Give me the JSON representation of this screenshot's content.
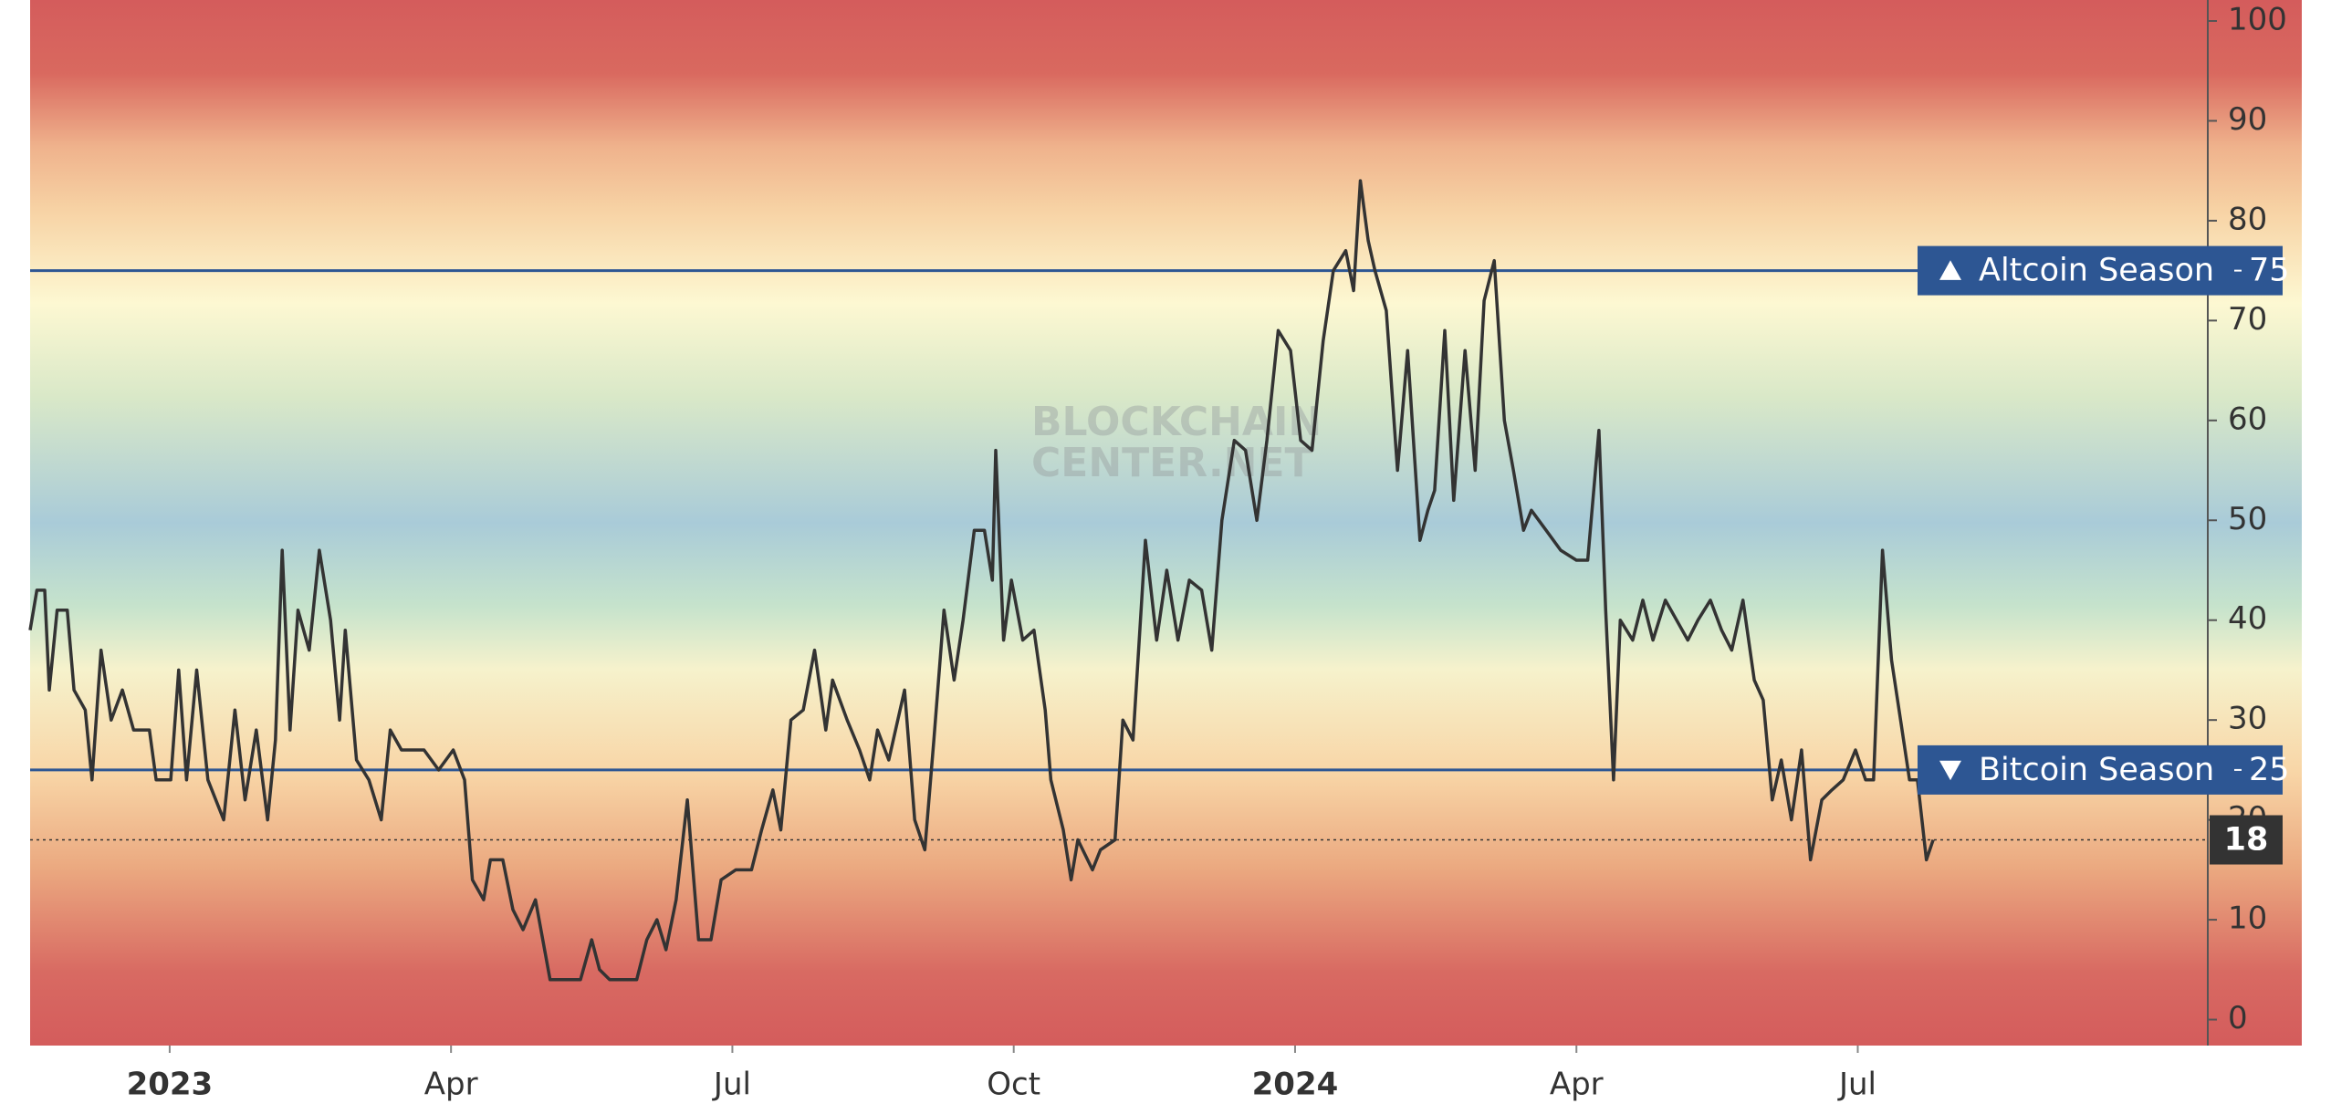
{
  "chart_data": {
    "type": "line",
    "color": "#333333",
    "xlim": [
      2022.876,
      2024.811
    ],
    "xticks": [
      {
        "value": 2023,
        "label": "2023"
      },
      {
        "value": 2023.25,
        "label": "Apr"
      },
      {
        "value": 2023.5,
        "label": "Jul"
      },
      {
        "value": 2023.75,
        "label": "Oct"
      },
      {
        "value": 2024,
        "label": "2024"
      },
      {
        "value": 2024.25,
        "label": "Apr"
      },
      {
        "value": 2024.5,
        "label": "Jul"
      }
    ],
    "ylim": [
      -2.6,
      102.1
    ],
    "yticks": [
      0,
      10,
      20,
      30,
      40,
      50,
      60,
      70,
      80,
      90,
      100
    ],
    "watermark": [
      "BLOCKCHAIN",
      "CENTER.NET"
    ],
    "reference_lines": [
      {
        "label": "Altcoin Season",
        "value": 75,
        "marker": "up",
        "color": "#2d5693"
      },
      {
        "label": "Bitcoin Season",
        "value": 25,
        "marker": "down",
        "color": "#2d5693"
      }
    ],
    "x": [
      2022.876,
      2022.882,
      2022.889,
      2022.893,
      2022.9,
      2022.909,
      2022.915,
      2022.925,
      2022.931,
      2022.939,
      2022.948,
      2022.958,
      2022.968,
      2022.982,
      2022.988,
      2023.001,
      2023.008,
      2023.015,
      2023.024,
      2023.034,
      2023.048,
      2023.058,
      2023.067,
      2023.077,
      2023.087,
      2023.094,
      2023.1,
      2023.107,
      2023.114,
      2023.124,
      2023.133,
      2023.143,
      2023.151,
      2023.156,
      2023.166,
      2023.177,
      2023.188,
      2023.196,
      2023.206,
      2023.226,
      2023.239,
      2023.252,
      2023.262,
      2023.269,
      2023.279,
      2023.285,
      2023.296,
      2023.305,
      2023.314,
      2023.325,
      2023.338,
      2023.365,
      2023.375,
      2023.382,
      2023.391,
      2023.404,
      2023.415,
      2023.424,
      2023.433,
      2023.441,
      2023.45,
      2023.46,
      2023.47,
      2023.481,
      2023.49,
      2023.503,
      2023.517,
      2023.526,
      2023.536,
      2023.543,
      2023.552,
      2023.563,
      2023.573,
      2023.583,
      2023.589,
      2023.602,
      2023.613,
      2023.622,
      2023.629,
      2023.639,
      2023.653,
      2023.662,
      2023.671,
      2023.679,
      2023.688,
      2023.697,
      2023.705,
      2023.715,
      2023.724,
      2023.731,
      2023.734,
      2023.741,
      2023.748,
      2023.758,
      2023.768,
      2023.778,
      2023.783,
      2023.794,
      2023.801,
      2023.807,
      2023.82,
      2023.827,
      2023.84,
      2023.847,
      2023.856,
      2023.867,
      2023.877,
      2023.886,
      2023.896,
      2023.906,
      2023.917,
      2023.926,
      2023.935,
      2023.946,
      2023.956,
      2023.966,
      2023.975,
      2023.985,
      2023.996,
      2024.005,
      2024.015,
      2024.025,
      2024.034,
      2024.045,
      2024.052,
      2024.058,
      2024.065,
      2024.071,
      2024.081,
      2024.091,
      2024.1,
      2024.111,
      2024.118,
      2024.124,
      2024.133,
      2024.141,
      2024.151,
      2024.16,
      2024.168,
      2024.177,
      2024.186,
      2024.194,
      2024.203,
      2024.21,
      2024.223,
      2024.236,
      2024.25,
      2024.26,
      2024.27,
      2024.276,
      2024.283,
      2024.289,
      2024.3,
      2024.309,
      2024.318,
      2024.329,
      2024.339,
      2024.349,
      2024.358,
      2024.369,
      2024.379,
      2024.388,
      2024.398,
      2024.408,
      2024.416,
      2024.424,
      2024.432,
      2024.441,
      2024.45,
      2024.458,
      2024.468,
      2024.477,
      2024.487,
      2024.498,
      2024.507,
      2024.514,
      2024.522,
      2024.53,
      2024.538,
      2024.546,
      2024.553,
      2024.561,
      2024.567
    ],
    "values": [
      39,
      43,
      43,
      33,
      41,
      41,
      33,
      31,
      24,
      37,
      30,
      33,
      29,
      29,
      24,
      24,
      35,
      24,
      35,
      24,
      20,
      31,
      22,
      29,
      20,
      28,
      47,
      29,
      41,
      37,
      47,
      40,
      30,
      39,
      26,
      24,
      20,
      29,
      27,
      27,
      25,
      27,
      24,
      14,
      12,
      16,
      16,
      11,
      9,
      12,
      4,
      4,
      8,
      5,
      4,
      4,
      4,
      8,
      10,
      7,
      12,
      22,
      8,
      8,
      14,
      15,
      15,
      19,
      23,
      19,
      30,
      31,
      37,
      29,
      34,
      30,
      27,
      24,
      29,
      26,
      33,
      20,
      17,
      28,
      41,
      34,
      40,
      49,
      49,
      44,
      57,
      38,
      44,
      38,
      39,
      31,
      24,
      19,
      14,
      18,
      15,
      17,
      18,
      30,
      28,
      48,
      38,
      45,
      38,
      44,
      43,
      37,
      50,
      58,
      57,
      50,
      58,
      69,
      67,
      58,
      57,
      68,
      75,
      77,
      73,
      84,
      78,
      75,
      71,
      55,
      67,
      48,
      51,
      53,
      69,
      52,
      67,
      55,
      72,
      76,
      60,
      55,
      49,
      51,
      49,
      47,
      46,
      46,
      59,
      41,
      24,
      40,
      38,
      42,
      38,
      42,
      40,
      38,
      40,
      42,
      39,
      37,
      42,
      34,
      32,
      22,
      26,
      20,
      27,
      16,
      22,
      23,
      24,
      27,
      24,
      24,
      47,
      36,
      30,
      24,
      24,
      16,
      18
    ]
  }
}
